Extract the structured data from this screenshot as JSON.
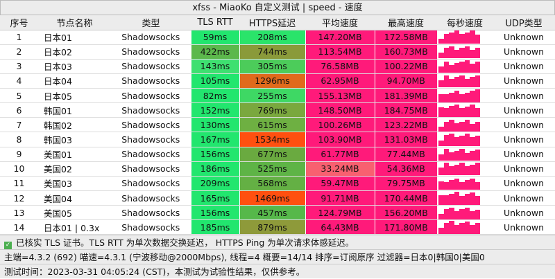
{
  "title": "xfss - MiaoKo 自定义测试 | speed - 速度",
  "headers": [
    "序号",
    "节点名称",
    "类型",
    "TLS RTT",
    "HTTPS延迟",
    "平均速度",
    "最高速度",
    "每秒速度",
    "UDP类型"
  ],
  "colors": {
    "pink": "#ff1a7a",
    "green": "#22e66e",
    "header_bg": "#ececec"
  },
  "rows": [
    {
      "i": "1",
      "name": "日本01",
      "type": "Shadowsocks",
      "tls": "59ms",
      "tls_c": "#22e66e",
      "https": "208ms",
      "https_c": "#2ae46a",
      "avg": "147.20MB",
      "avg_c": "#ff1a7a",
      "max": "172.58MB",
      "udp": "Unknown"
    },
    {
      "i": "2",
      "name": "日本02",
      "type": "Shadowsocks",
      "tls": "422ms",
      "tls_c": "#5cb84c",
      "https": "744ms",
      "https_c": "#8a9a3a",
      "avg": "113.54MB",
      "avg_c": "#ff1a7a",
      "max": "160.73MB",
      "udp": "Unknown"
    },
    {
      "i": "3",
      "name": "日本03",
      "type": "Shadowsocks",
      "tls": "143ms",
      "tls_c": "#3ee070",
      "https": "305ms",
      "https_c": "#4ccc5a",
      "avg": "76.58MB",
      "avg_c": "#ff1a7a",
      "max": "100.22MB",
      "udp": "Unknown"
    },
    {
      "i": "4",
      "name": "日本04",
      "type": "Shadowsocks",
      "tls": "105ms",
      "tls_c": "#22e66e",
      "https": "1296ms",
      "https_c": "#e06a1c",
      "avg": "62.95MB",
      "avg_c": "#ff1a7a",
      "max": "94.70MB",
      "udp": "Unknown"
    },
    {
      "i": "5",
      "name": "日本05",
      "type": "Shadowsocks",
      "tls": "82ms",
      "tls_c": "#22e66e",
      "https": "255ms",
      "https_c": "#3ed864",
      "avg": "155.13MB",
      "avg_c": "#ff1a7a",
      "max": "181.39MB",
      "udp": "Unknown"
    },
    {
      "i": "6",
      "name": "韩国01",
      "type": "Shadowsocks",
      "tls": "152ms",
      "tls_c": "#22e66e",
      "https": "769ms",
      "https_c": "#7aa83e",
      "avg": "148.50MB",
      "avg_c": "#ff1a7a",
      "max": "184.75MB",
      "udp": "Unknown"
    },
    {
      "i": "7",
      "name": "韩国02",
      "type": "Shadowsocks",
      "tls": "130ms",
      "tls_c": "#22e66e",
      "https": "615ms",
      "https_c": "#6eb042",
      "avg": "100.26MB",
      "avg_c": "#ff1a7a",
      "max": "123.22MB",
      "udp": "Unknown"
    },
    {
      "i": "8",
      "name": "韩国03",
      "type": "Shadowsocks",
      "tls": "167ms",
      "tls_c": "#22e66e",
      "https": "1534ms",
      "https_c": "#ff5010",
      "avg": "103.90MB",
      "avg_c": "#ff1a7a",
      "max": "131.03MB",
      "udp": "Unknown"
    },
    {
      "i": "9",
      "name": "美国01",
      "type": "Shadowsocks",
      "tls": "156ms",
      "tls_c": "#22e66e",
      "https": "677ms",
      "https_c": "#6aaa40",
      "avg": "61.77MB",
      "avg_c": "#ff1a7a",
      "max": "77.44MB",
      "udp": "Unknown"
    },
    {
      "i": "10",
      "name": "美国02",
      "type": "Shadowsocks",
      "tls": "186ms",
      "tls_c": "#22e66e",
      "https": "525ms",
      "https_c": "#5eb446",
      "avg": "33.24MB",
      "avg_c": "#f86070",
      "max": "54.36MB",
      "udp": "Unknown"
    },
    {
      "i": "11",
      "name": "美国03",
      "type": "Shadowsocks",
      "tls": "209ms",
      "tls_c": "#22e66e",
      "https": "568ms",
      "https_c": "#64b044",
      "avg": "59.47MB",
      "avg_c": "#ff1a7a",
      "max": "79.75MB",
      "udp": "Unknown"
    },
    {
      "i": "12",
      "name": "美国04",
      "type": "Shadowsocks",
      "tls": "165ms",
      "tls_c": "#22e66e",
      "https": "1469ms",
      "https_c": "#ff5010",
      "avg": "91.71MB",
      "avg_c": "#ff1a7a",
      "max": "170.44MB",
      "udp": "Unknown"
    },
    {
      "i": "13",
      "name": "美国05",
      "type": "Shadowsocks",
      "tls": "156ms",
      "tls_c": "#22e66e",
      "https": "457ms",
      "https_c": "#56b84a",
      "avg": "124.79MB",
      "avg_c": "#ff1a7a",
      "max": "156.20MB",
      "udp": "Unknown"
    },
    {
      "i": "14",
      "name": "日本01 | 0.3x",
      "type": "Shadowsocks",
      "tls": "185ms",
      "tls_c": "#22e66e",
      "https": "879ms",
      "https_c": "#8e9a3a",
      "avg": "64.43MB",
      "avg_c": "#ff1a7a",
      "max": "171.80MB",
      "udp": "Unknown"
    }
  ],
  "footer": {
    "line1": "已核实 TLS 证书。TLS RTT 为单次数据交换延迟， HTTPS Ping 为单次请求体感延迟。",
    "line2": "主端=4.3.2 (692) 喵速=4.3.1 (宁波移动@2000Mbps), 线程=4 概要=14/14 排序=订阅原序 过滤器=日本0|韩国0|美国0",
    "line3": "测试时间：2023-03-31 04:05:24 (CST)，本测试为试验性结果，仅供参考。"
  }
}
